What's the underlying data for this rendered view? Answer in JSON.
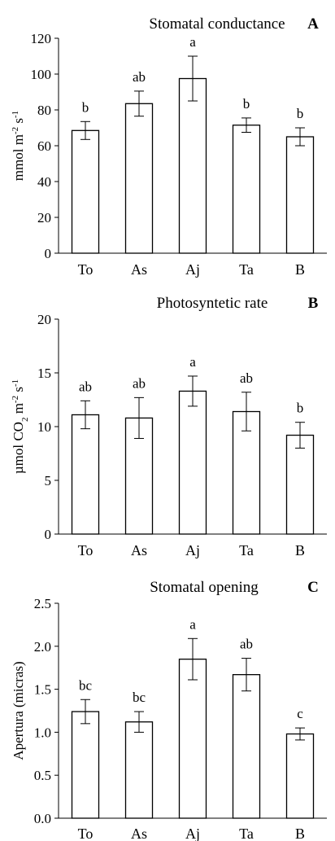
{
  "chart_data": [
    {
      "type": "bar",
      "panel": "A",
      "title": "Stomatal conductance",
      "ylabel_parts": [
        {
          "t": "mmol m",
          "k": "n"
        },
        {
          "t": "-2",
          "k": "sup"
        },
        {
          "t": " s",
          "k": "n"
        },
        {
          "t": "-1",
          "k": "sup"
        }
      ],
      "categories": [
        "To",
        "As",
        "Aj",
        "Ta",
        "B"
      ],
      "values": [
        68.5,
        83.5,
        97.5,
        71.5,
        65.0
      ],
      "errors": [
        5,
        7,
        12.5,
        4,
        5
      ],
      "letters": [
        "b",
        "ab",
        "a",
        "b",
        "b"
      ],
      "ylim": [
        0,
        120
      ],
      "yticks": [
        "0",
        "20",
        "40",
        "60",
        "80",
        "100",
        "120"
      ],
      "ytick_values": [
        0,
        20,
        40,
        60,
        80,
        100,
        120
      ],
      "grid": false,
      "bar_fill": "#ffffff",
      "bar_stroke": "#000000"
    },
    {
      "type": "bar",
      "panel": "B",
      "title": "Photosyntetic rate",
      "ylabel_parts": [
        {
          "t": "µmol CO",
          "k": "n"
        },
        {
          "t": "2",
          "k": "sub"
        },
        {
          "t": " m",
          "k": "n"
        },
        {
          "t": "-2",
          "k": "sup"
        },
        {
          "t": " s",
          "k": "n"
        },
        {
          "t": "-1",
          "k": "sup"
        }
      ],
      "categories": [
        "To",
        "As",
        "Aj",
        "Ta",
        "B"
      ],
      "values": [
        11.1,
        10.8,
        13.3,
        11.4,
        9.2
      ],
      "errors": [
        1.3,
        1.9,
        1.4,
        1.8,
        1.2
      ],
      "letters": [
        "ab",
        "ab",
        "a",
        "ab",
        "b"
      ],
      "ylim": [
        0,
        20
      ],
      "yticks": [
        "0",
        "5",
        "10",
        "15",
        "20"
      ],
      "ytick_values": [
        0,
        5,
        10,
        15,
        20
      ],
      "grid": false,
      "bar_fill": "#ffffff",
      "bar_stroke": "#000000"
    },
    {
      "type": "bar",
      "panel": "C",
      "title": "Stomatal opening",
      "ylabel_parts": [
        {
          "t": "Apertura (micras)",
          "k": "n"
        }
      ],
      "categories": [
        "To",
        "As",
        "Aj",
        "Ta",
        "B"
      ],
      "values": [
        1.24,
        1.12,
        1.85,
        1.67,
        0.98
      ],
      "errors": [
        0.14,
        0.12,
        0.24,
        0.19,
        0.07
      ],
      "letters": [
        "bc",
        "bc",
        "a",
        "ab",
        "c"
      ],
      "ylim": [
        0,
        2.5
      ],
      "yticks": [
        "0.0",
        "0.5",
        "1.0",
        "1.5",
        "2.0",
        "2.5"
      ],
      "ytick_values": [
        0,
        0.5,
        1.0,
        1.5,
        2.0,
        2.5
      ],
      "grid": false,
      "bar_fill": "#ffffff",
      "bar_stroke": "#000000"
    }
  ]
}
